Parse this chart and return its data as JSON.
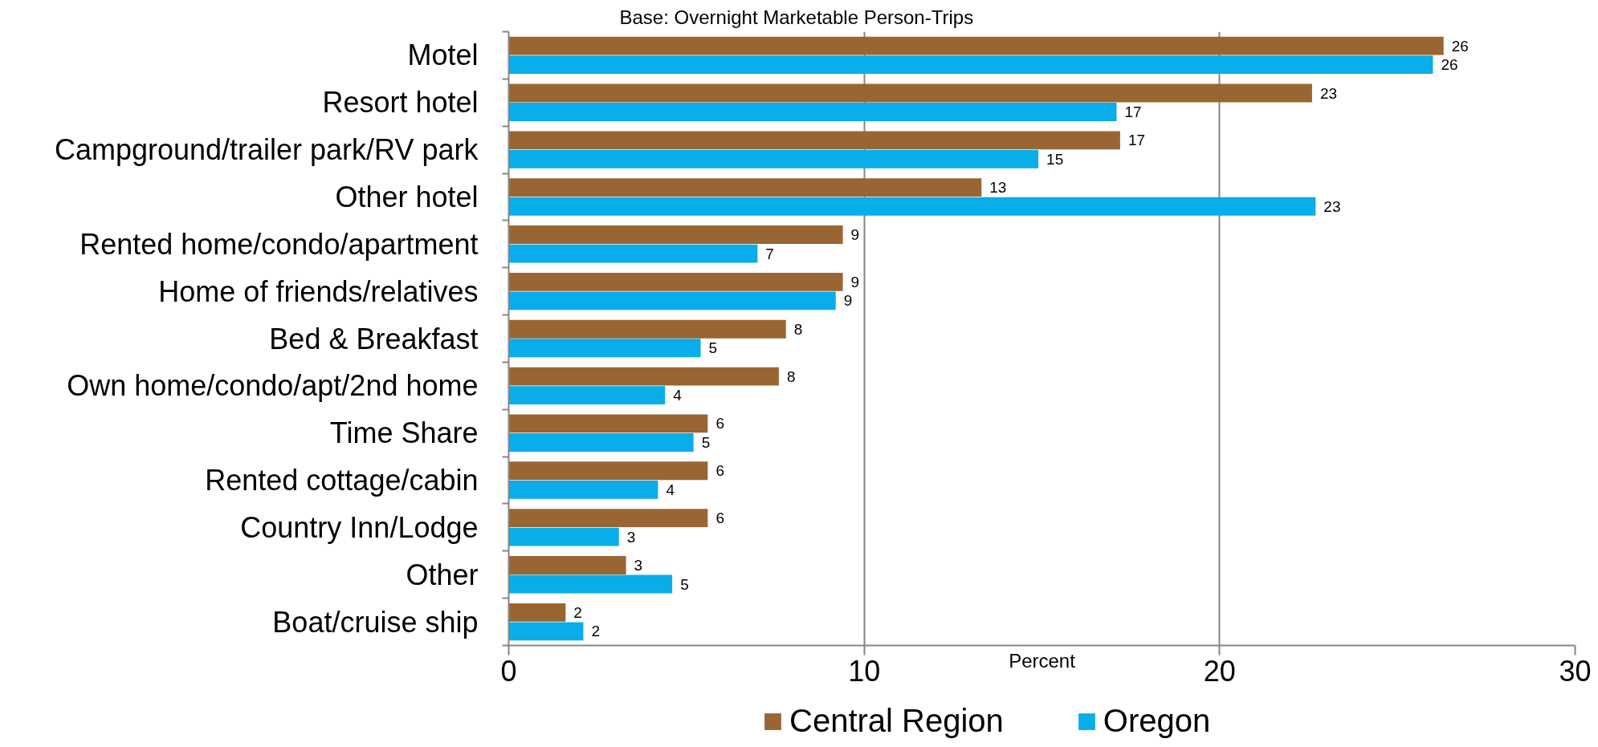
{
  "chart_data": {
    "type": "bar",
    "orientation": "horizontal",
    "title": "Base: Overnight Marketable Person-Trips",
    "xlabel": "Percent",
    "categories": [
      "Motel",
      "Resort hotel",
      "Campground/trailer park/RV park",
      "Other hotel",
      "Rented home/condo/apartment",
      "Home of friends/relatives",
      "Bed & Breakfast",
      "Own home/condo/apt/2nd home",
      "Time Share",
      "Rented cottage/cabin",
      "Country Inn/Lodge",
      "Other",
      "Boat/cruise ship"
    ],
    "series": [
      {
        "name": "Central Region",
        "color": "#996633",
        "values": [
          26.3,
          22.6,
          17.2,
          13.3,
          9.4,
          9.4,
          7.8,
          7.6,
          5.6,
          5.6,
          5.6,
          3.3,
          1.6
        ],
        "value_labels": [
          "26",
          "23",
          "17",
          "13",
          "9",
          "9",
          "8",
          "8",
          "6",
          "6",
          "6",
          "3",
          "2"
        ]
      },
      {
        "name": "Oregon",
        "color": "#09ade9",
        "values": [
          26.0,
          17.1,
          14.9,
          22.7,
          7.0,
          9.2,
          5.4,
          4.4,
          5.2,
          4.2,
          3.1,
          4.6,
          2.1
        ],
        "value_labels": [
          "26",
          "17",
          "15",
          "23",
          "7",
          "9",
          "5",
          "4",
          "5",
          "4",
          "3",
          "5",
          "2"
        ]
      }
    ],
    "xlim": [
      0,
      30
    ],
    "xticks": [
      0,
      10,
      20,
      30
    ],
    "grid": "x",
    "legend": "bottom"
  }
}
